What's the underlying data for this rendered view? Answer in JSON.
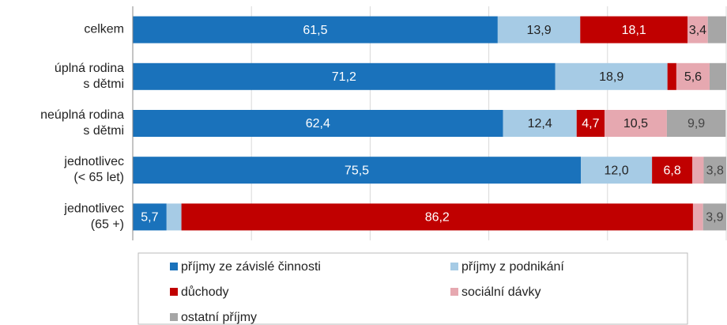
{
  "chart_data": {
    "type": "stacked-bar-horizontal",
    "categories": [
      "celkem",
      "úplná rodina\ns dětmi",
      "neúplná rodina\ns dětmi",
      "jednotlivec\n(< 65 let)",
      "jednotlivec\n(65 +)"
    ],
    "xlim": [
      0,
      100
    ],
    "xticks": [
      0,
      20,
      40,
      60,
      80,
      100
    ],
    "grid": true,
    "legend": "bottom",
    "series": [
      {
        "name": "příjmy ze závislé činnosti",
        "color": "#1a72bb",
        "values": [
          61.5,
          71.2,
          62.4,
          75.5,
          5.7
        ],
        "value_labels": [
          "61,5",
          "71,2",
          "62,4",
          "75,5",
          "5,7"
        ]
      },
      {
        "name": "příjmy z podnikání",
        "color": "#a6cbe5",
        "values": [
          13.9,
          18.9,
          12.4,
          12.0,
          2.5
        ],
        "value_labels": [
          "13,9",
          "18,9",
          "12,4",
          "12,0",
          null
        ]
      },
      {
        "name": "důchody",
        "color": "#c00000",
        "values": [
          18.1,
          1.5,
          4.7,
          6.8,
          86.2
        ],
        "value_labels": [
          "18,1",
          null,
          "4,7",
          "6,8",
          "86,2"
        ]
      },
      {
        "name": "sociální dávky",
        "color": "#e6a8b0",
        "values": [
          3.4,
          5.6,
          10.5,
          1.9,
          1.7
        ],
        "value_labels": [
          "3,4",
          "5,6",
          "10,5",
          null,
          null
        ]
      },
      {
        "name": "ostatní příjmy",
        "color": "#a6a6a6",
        "values": [
          3.1,
          2.8,
          9.9,
          3.8,
          3.9
        ],
        "value_labels": [
          null,
          null,
          "9,9",
          "3,8",
          "3,9"
        ]
      }
    ]
  }
}
